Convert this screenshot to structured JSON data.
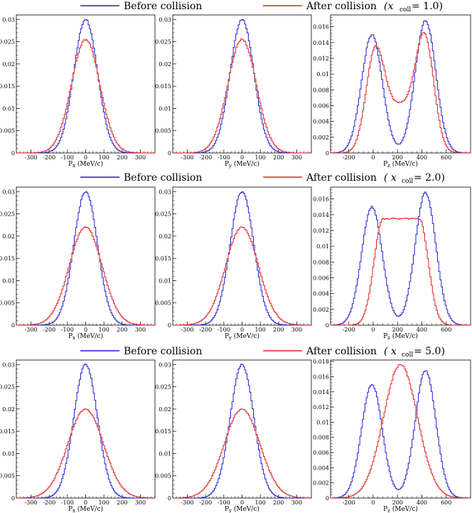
{
  "legend": {
    "before_label": "Before collision",
    "after_label": "After collision",
    "before_color": "#1f1fd0",
    "after_color": "#e02020"
  },
  "rows": [
    {
      "xcoll_label": "(x",
      "xcoll_sub": "coll",
      "xcoll_value": " = 1.0)"
    },
    {
      "xcoll_label": "( x",
      "xcoll_sub": "coll",
      "xcoll_value": " = 2.0)"
    },
    {
      "xcoll_label": "( x",
      "xcoll_sub": "coll",
      "xcoll_value": " = 5.0)"
    }
  ],
  "chart_data": [
    {
      "type": "line",
      "row": 0,
      "col": 0,
      "xlabel": "P_x (MeV/c)",
      "xlim": [
        -380,
        380
      ],
      "ylim": [
        0,
        0.031
      ],
      "xticks": [
        -300,
        -200,
        -100,
        0,
        100,
        200,
        300
      ],
      "yticks": [
        0,
        0.005,
        0.01,
        0.015,
        0.02,
        0.025,
        0.03
      ],
      "series": [
        {
          "name": "Before collision",
          "shape": "gauss",
          "peaks": [
            [
              0,
              0.03,
              65
            ]
          ]
        },
        {
          "name": "After collision",
          "shape": "gauss",
          "peaks": [
            [
              0,
              0.0255,
              78
            ]
          ]
        }
      ]
    },
    {
      "type": "line",
      "row": 0,
      "col": 1,
      "xlabel": "P_y (MeV/c)",
      "xlim": [
        -380,
        380
      ],
      "ylim": [
        0,
        0.031
      ],
      "xticks": [
        -300,
        -200,
        -100,
        0,
        100,
        200,
        300
      ],
      "yticks": [
        0,
        0.005,
        0.01,
        0.015,
        0.02,
        0.025,
        0.03
      ],
      "series": [
        {
          "name": "Before collision",
          "shape": "gauss",
          "peaks": [
            [
              0,
              0.03,
              65
            ]
          ]
        },
        {
          "name": "After collision",
          "shape": "gauss",
          "peaks": [
            [
              0,
              0.0255,
              78
            ]
          ]
        }
      ]
    },
    {
      "type": "line",
      "row": 0,
      "col": 2,
      "xlabel": "P_z (MeV/c)",
      "xlim": [
        -350,
        800
      ],
      "ylim": [
        0,
        0.0175
      ],
      "xticks": [
        -200,
        0,
        200,
        400,
        600
      ],
      "yticks": [
        0,
        0.002,
        0.004,
        0.006,
        0.008,
        0.01,
        0.012,
        0.014,
        0.016
      ],
      "series": [
        {
          "name": "Before collision",
          "shape": "gauss",
          "peaks": [
            [
              -10,
              0.015,
              85
            ],
            [
              430,
              0.0168,
              85
            ]
          ]
        },
        {
          "name": "After collision",
          "shape": "gauss",
          "peaks": [
            [
              15,
              0.0118,
              75
            ],
            [
              425,
              0.0135,
              75
            ],
            [
              220,
              0.0058,
              130
            ]
          ]
        }
      ]
    },
    {
      "type": "line",
      "row": 1,
      "col": 0,
      "xlabel": "P_x (MeV/c)",
      "xlim": [
        -380,
        380
      ],
      "ylim": [
        0,
        0.031
      ],
      "xticks": [
        -300,
        -200,
        -100,
        0,
        100,
        200,
        300
      ],
      "yticks": [
        0,
        0.005,
        0.01,
        0.015,
        0.02,
        0.025,
        0.03
      ],
      "series": [
        {
          "name": "Before collision",
          "shape": "gauss",
          "peaks": [
            [
              0,
              0.03,
              65
            ]
          ]
        },
        {
          "name": "After collision",
          "shape": "gauss",
          "peaks": [
            [
              0,
              0.022,
              90
            ]
          ]
        }
      ]
    },
    {
      "type": "line",
      "row": 1,
      "col": 1,
      "xlabel": "P_y (MeV/c)",
      "xlim": [
        -380,
        380
      ],
      "ylim": [
        0,
        0.031
      ],
      "xticks": [
        -300,
        -200,
        -100,
        0,
        100,
        200,
        300
      ],
      "yticks": [
        0,
        0.005,
        0.01,
        0.015,
        0.02,
        0.025,
        0.03
      ],
      "series": [
        {
          "name": "Before collision",
          "shape": "gauss",
          "peaks": [
            [
              0,
              0.03,
              65
            ]
          ]
        },
        {
          "name": "After collision",
          "shape": "gauss",
          "peaks": [
            [
              0,
              0.022,
              90
            ]
          ]
        }
      ]
    },
    {
      "type": "line",
      "row": 1,
      "col": 2,
      "xlabel": "P_z (MeV/c)",
      "xlim": [
        -350,
        800
      ],
      "ylim": [
        0,
        0.0175
      ],
      "xticks": [
        -200,
        0,
        200,
        400,
        600
      ],
      "yticks": [
        0,
        0.002,
        0.004,
        0.006,
        0.008,
        0.01,
        0.012,
        0.014,
        0.016
      ],
      "series": [
        {
          "name": "Before collision",
          "shape": "gauss",
          "peaks": [
            [
              -10,
              0.015,
              85
            ],
            [
              430,
              0.0168,
              85
            ]
          ]
        },
        {
          "name": "After collision",
          "shape": "plateau",
          "plateau": [
            80,
            380,
            0.0135,
            72
          ]
        }
      ]
    },
    {
      "type": "line",
      "row": 2,
      "col": 0,
      "xlabel": "P_x (MeV/c)",
      "xlim": [
        -380,
        380
      ],
      "ylim": [
        0,
        0.031
      ],
      "xticks": [
        -300,
        -200,
        -100,
        0,
        100,
        200,
        300
      ],
      "yticks": [
        0,
        0.005,
        0.01,
        0.015,
        0.02,
        0.025,
        0.03
      ],
      "series": [
        {
          "name": "Before collision",
          "shape": "gauss",
          "peaks": [
            [
              0,
              0.03,
              65
            ]
          ]
        },
        {
          "name": "After collision",
          "shape": "gauss",
          "peaks": [
            [
              0,
              0.02,
              98
            ]
          ]
        }
      ]
    },
    {
      "type": "line",
      "row": 2,
      "col": 1,
      "xlabel": "P_y (MeV/c)",
      "xlim": [
        -380,
        380
      ],
      "ylim": [
        0,
        0.031
      ],
      "xticks": [
        -300,
        -200,
        -100,
        0,
        100,
        200,
        300
      ],
      "yticks": [
        0,
        0.005,
        0.01,
        0.015,
        0.02,
        0.025,
        0.03
      ],
      "series": [
        {
          "name": "Before collision",
          "shape": "gauss",
          "peaks": [
            [
              0,
              0.03,
              65
            ]
          ]
        },
        {
          "name": "After collision",
          "shape": "gauss",
          "peaks": [
            [
              0,
              0.02,
              98
            ]
          ]
        }
      ]
    },
    {
      "type": "line",
      "row": 2,
      "col": 2,
      "xlabel": "P_z (MeV/c)",
      "xlim": [
        -350,
        800
      ],
      "ylim": [
        0,
        0.0182
      ],
      "xticks": [
        -200,
        0,
        200,
        400,
        600
      ],
      "yticks": [
        0,
        0.002,
        0.004,
        0.006,
        0.008,
        0.01,
        0.012,
        0.014,
        0.016,
        0.018
      ],
      "series": [
        {
          "name": "Before collision",
          "shape": "gauss",
          "peaks": [
            [
              -10,
              0.015,
              85
            ],
            [
              430,
              0.0168,
              85
            ]
          ]
        },
        {
          "name": "After collision",
          "shape": "gauss",
          "peaks": [
            [
              225,
              0.0176,
              140
            ]
          ]
        }
      ]
    }
  ]
}
